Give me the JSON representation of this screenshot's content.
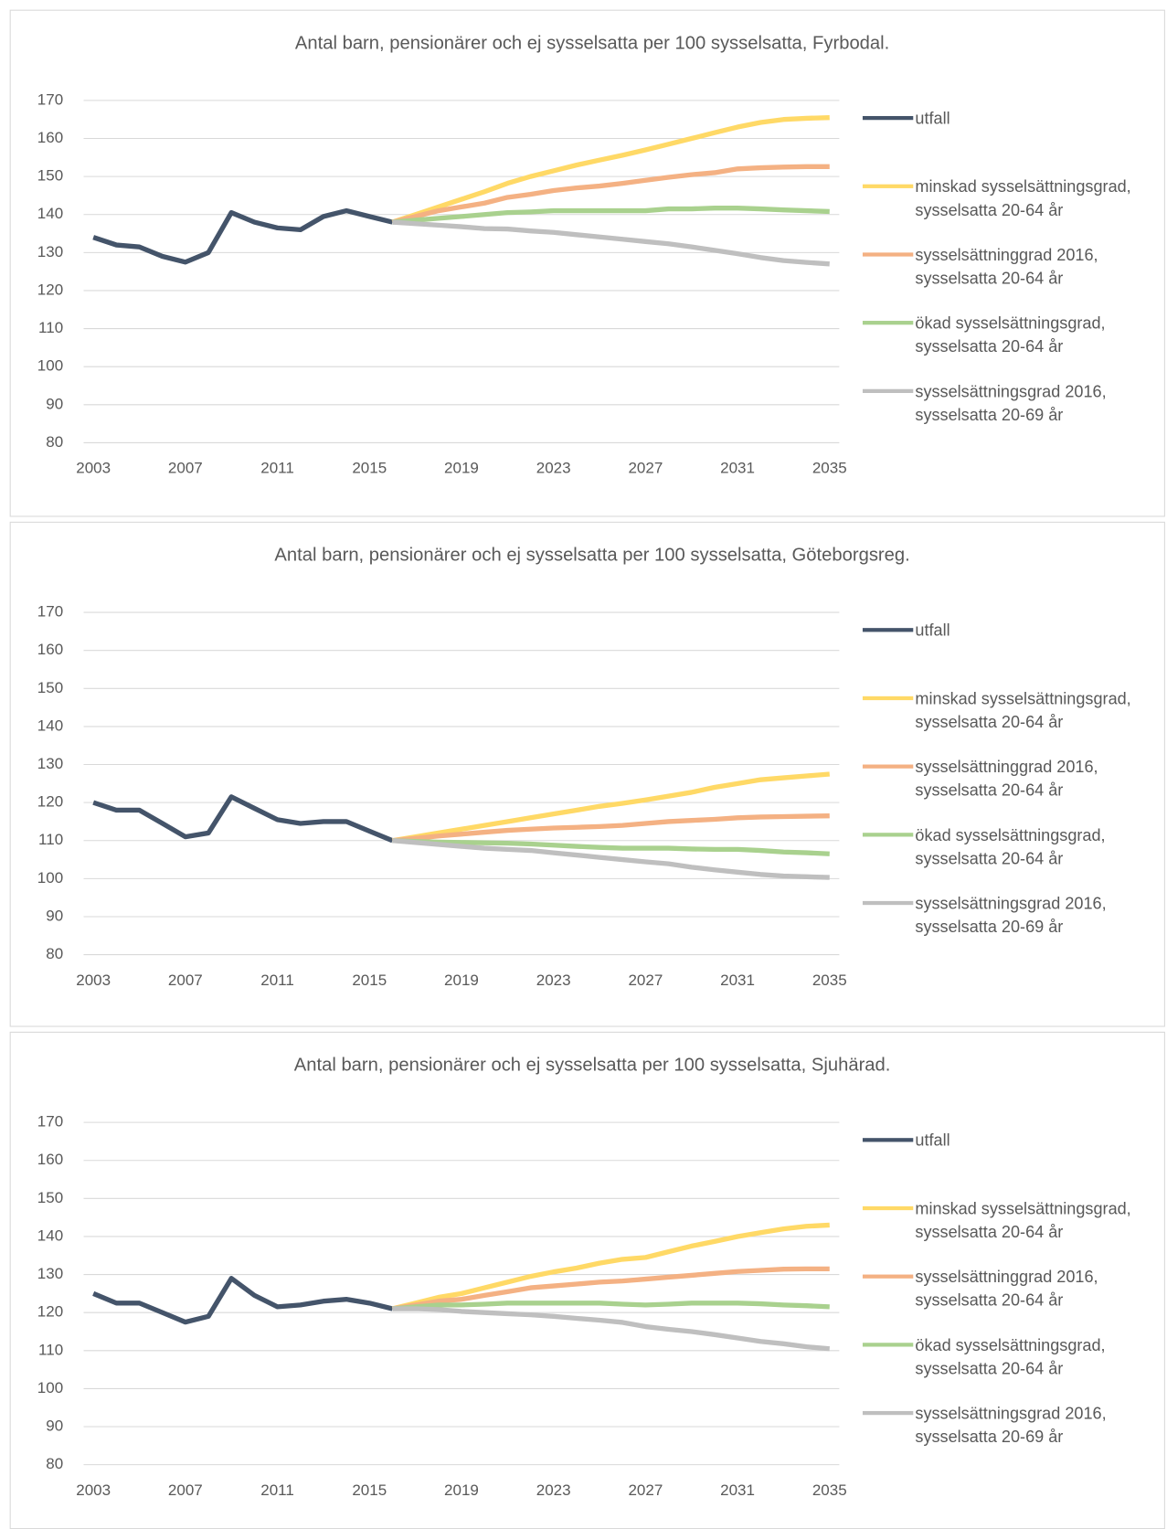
{
  "chart_data": [
    {
      "type": "line",
      "title": "Antal barn, pensionärer och ej sysselsatta per 100 sysselsatta, Fyrbodal.",
      "x": [
        2003,
        2004,
        2005,
        2006,
        2007,
        2008,
        2009,
        2010,
        2011,
        2012,
        2013,
        2014,
        2015,
        2016,
        2017,
        2018,
        2019,
        2020,
        2021,
        2022,
        2023,
        2024,
        2025,
        2026,
        2027,
        2028,
        2029,
        2030,
        2031,
        2032,
        2033,
        2034,
        2035
      ],
      "xticks": [
        2003,
        2007,
        2011,
        2015,
        2019,
        2023,
        2027,
        2031,
        2035
      ],
      "xlim": [
        2003,
        2035
      ],
      "ylim": [
        80,
        170
      ],
      "yticks": [
        80,
        90,
        100,
        110,
        120,
        130,
        140,
        150,
        160,
        170
      ],
      "grid": true,
      "series": [
        {
          "name": "utfall",
          "color": "#44546a",
          "values": [
            134,
            132,
            131.5,
            129,
            127.5,
            130,
            140.5,
            138,
            136.5,
            136,
            139.5,
            141,
            139.5,
            138,
            null,
            null,
            null,
            null,
            null,
            null,
            null,
            null,
            null,
            null,
            null,
            null,
            null,
            null,
            null,
            null,
            null,
            null,
            null
          ]
        },
        {
          "name": "minskad sysselsättningsgrad, sysselsatta 20-64 år",
          "color": "#ffd966",
          "values": [
            null,
            null,
            null,
            null,
            null,
            null,
            null,
            null,
            null,
            null,
            null,
            null,
            null,
            138,
            140,
            142,
            144,
            146,
            148.2,
            150,
            151.5,
            153,
            154.3,
            155.6,
            157,
            158.5,
            160,
            161.5,
            163,
            164.2,
            165,
            165.3,
            165.5
          ]
        },
        {
          "name": "sysselsättninggrad 2016, sysselsatta 20-64 år",
          "color": "#f4b183",
          "values": [
            null,
            null,
            null,
            null,
            null,
            null,
            null,
            null,
            null,
            null,
            null,
            null,
            null,
            138,
            139.5,
            141,
            142,
            143,
            144.5,
            145.3,
            146.3,
            147,
            147.5,
            148.2,
            149,
            149.8,
            150.5,
            151,
            152,
            152.3,
            152.5,
            152.6,
            152.6
          ]
        },
        {
          "name": "ökad sysselsättningsgrad, sysselsatta 20-64 år",
          "color": "#a9d18e",
          "values": [
            null,
            null,
            null,
            null,
            null,
            null,
            null,
            null,
            null,
            null,
            null,
            null,
            null,
            138,
            138.5,
            139,
            139.5,
            140,
            140.5,
            140.7,
            141,
            141,
            141,
            141,
            141,
            141.5,
            141.5,
            141.7,
            141.7,
            141.5,
            141.2,
            141,
            140.8
          ]
        },
        {
          "name": "sysselsättningsgrad 2016, sysselsatta 20-69 år",
          "color": "#bfbfbf",
          "values": [
            null,
            null,
            null,
            null,
            null,
            null,
            null,
            null,
            null,
            null,
            null,
            null,
            null,
            138,
            137.6,
            137.2,
            136.8,
            136.3,
            136.2,
            135.7,
            135.3,
            134.7,
            134.1,
            133.5,
            132.9,
            132.3,
            131.5,
            130.6,
            129.7,
            128.7,
            127.9,
            127.4,
            127
          ]
        }
      ]
    },
    {
      "type": "line",
      "title": "Antal barn, pensionärer och ej sysselsatta per 100 sysselsatta, Göteborgsreg.",
      "x": [
        2003,
        2004,
        2005,
        2006,
        2007,
        2008,
        2009,
        2010,
        2011,
        2012,
        2013,
        2014,
        2015,
        2016,
        2017,
        2018,
        2019,
        2020,
        2021,
        2022,
        2023,
        2024,
        2025,
        2026,
        2027,
        2028,
        2029,
        2030,
        2031,
        2032,
        2033,
        2034,
        2035
      ],
      "xticks": [
        2003,
        2007,
        2011,
        2015,
        2019,
        2023,
        2027,
        2031,
        2035
      ],
      "xlim": [
        2003,
        2035
      ],
      "ylim": [
        80,
        170
      ],
      "yticks": [
        80,
        90,
        100,
        110,
        120,
        130,
        140,
        150,
        160,
        170
      ],
      "grid": true,
      "series": [
        {
          "name": "utfall",
          "color": "#44546a",
          "values": [
            120,
            118,
            118,
            114.5,
            111,
            112,
            121.5,
            118.5,
            115.5,
            114.5,
            115,
            115,
            112.5,
            110,
            null,
            null,
            null,
            null,
            null,
            null,
            null,
            null,
            null,
            null,
            null,
            null,
            null,
            null,
            null,
            null,
            null,
            null,
            null
          ]
        },
        {
          "name": "minskad sysselsättningsgrad, sysselsatta 20-64 år",
          "color": "#ffd966",
          "values": [
            null,
            null,
            null,
            null,
            null,
            null,
            null,
            null,
            null,
            null,
            null,
            null,
            null,
            110,
            111,
            112,
            113,
            114,
            115,
            116,
            117,
            118,
            119,
            119.8,
            120.7,
            121.7,
            122.7,
            124,
            125,
            126,
            126.5,
            127,
            127.5
          ]
        },
        {
          "name": "sysselsättninggrad 2016, sysselsatta 20-64 år",
          "color": "#f4b183",
          "values": [
            null,
            null,
            null,
            null,
            null,
            null,
            null,
            null,
            null,
            null,
            null,
            null,
            null,
            110,
            110.6,
            111.2,
            111.7,
            112.2,
            112.7,
            113,
            113.3,
            113.5,
            113.7,
            114,
            114.5,
            115,
            115.3,
            115.6,
            116,
            116.2,
            116.3,
            116.4,
            116.5
          ]
        },
        {
          "name": "ökad sysselsättningsgrad, sysselsatta 20-64 år",
          "color": "#a9d18e",
          "values": [
            null,
            null,
            null,
            null,
            null,
            null,
            null,
            null,
            null,
            null,
            null,
            null,
            null,
            110,
            109.8,
            109.6,
            109.5,
            109.4,
            109.3,
            109.1,
            108.8,
            108.5,
            108.2,
            108,
            108,
            108,
            107.8,
            107.7,
            107.7,
            107.4,
            107,
            106.8,
            106.5
          ]
        },
        {
          "name": "sysselsättningsgrad 2016, sysselsatta 20-69 år",
          "color": "#bfbfbf",
          "values": [
            null,
            null,
            null,
            null,
            null,
            null,
            null,
            null,
            null,
            null,
            null,
            null,
            null,
            110,
            109.5,
            109,
            108.5,
            108,
            107.7,
            107.4,
            106.8,
            106.2,
            105.6,
            105,
            104.4,
            103.9,
            103,
            102.3,
            101.7,
            101.1,
            100.7,
            100.5,
            100.3
          ]
        }
      ]
    },
    {
      "type": "line",
      "title": "Antal barn, pensionärer och ej sysselsatta per 100 sysselsatta, Sjuhärad.",
      "x": [
        2003,
        2004,
        2005,
        2006,
        2007,
        2008,
        2009,
        2010,
        2011,
        2012,
        2013,
        2014,
        2015,
        2016,
        2017,
        2018,
        2019,
        2020,
        2021,
        2022,
        2023,
        2024,
        2025,
        2026,
        2027,
        2028,
        2029,
        2030,
        2031,
        2032,
        2033,
        2034,
        2035
      ],
      "xticks": [
        2003,
        2007,
        2011,
        2015,
        2019,
        2023,
        2027,
        2031,
        2035
      ],
      "xlim": [
        2003,
        2035
      ],
      "ylim": [
        80,
        170
      ],
      "yticks": [
        80,
        90,
        100,
        110,
        120,
        130,
        140,
        150,
        160,
        170
      ],
      "grid": true,
      "series": [
        {
          "name": "utfall",
          "color": "#44546a",
          "values": [
            125,
            122.5,
            122.5,
            120,
            117.5,
            119,
            129,
            124.5,
            121.5,
            122,
            123,
            123.5,
            122.5,
            121,
            null,
            null,
            null,
            null,
            null,
            null,
            null,
            null,
            null,
            null,
            null,
            null,
            null,
            null,
            null,
            null,
            null,
            null,
            null
          ]
        },
        {
          "name": "minskad sysselsättningsgrad, sysselsatta 20-64 år",
          "color": "#ffd966",
          "values": [
            null,
            null,
            null,
            null,
            null,
            null,
            null,
            null,
            null,
            null,
            null,
            null,
            null,
            121,
            122.5,
            124,
            125,
            126.5,
            128,
            129.5,
            130.7,
            131.7,
            133,
            134,
            134.5,
            136,
            137.5,
            138.7,
            140,
            141,
            142,
            142.7,
            143
          ]
        },
        {
          "name": "sysselsättninggrad 2016, sysselsatta 20-64 år",
          "color": "#f4b183",
          "values": [
            null,
            null,
            null,
            null,
            null,
            null,
            null,
            null,
            null,
            null,
            null,
            null,
            null,
            121,
            122,
            123,
            123.5,
            124.5,
            125.5,
            126.5,
            127,
            127.5,
            128,
            128.3,
            128.8,
            129.3,
            129.8,
            130.3,
            130.8,
            131.1,
            131.4,
            131.5,
            131.5
          ]
        },
        {
          "name": "ökad sysselsättningsgrad, sysselsatta 20-64 år",
          "color": "#a9d18e",
          "values": [
            null,
            null,
            null,
            null,
            null,
            null,
            null,
            null,
            null,
            null,
            null,
            null,
            null,
            121,
            121.5,
            122,
            122,
            122.2,
            122.5,
            122.5,
            122.5,
            122.5,
            122.5,
            122.2,
            122,
            122.2,
            122.5,
            122.5,
            122.5,
            122.3,
            122,
            121.8,
            121.5
          ]
        },
        {
          "name": "sysselsättningsgrad 2016, sysselsatta 20-69 år",
          "color": "#bfbfbf",
          "values": [
            null,
            null,
            null,
            null,
            null,
            null,
            null,
            null,
            null,
            null,
            null,
            null,
            null,
            121,
            121,
            120.8,
            120.3,
            120,
            119.7,
            119.4,
            119,
            118.5,
            118,
            117.4,
            116.3,
            115.6,
            115,
            114.2,
            113.3,
            112.4,
            111.8,
            111,
            110.5
          ]
        }
      ]
    }
  ]
}
